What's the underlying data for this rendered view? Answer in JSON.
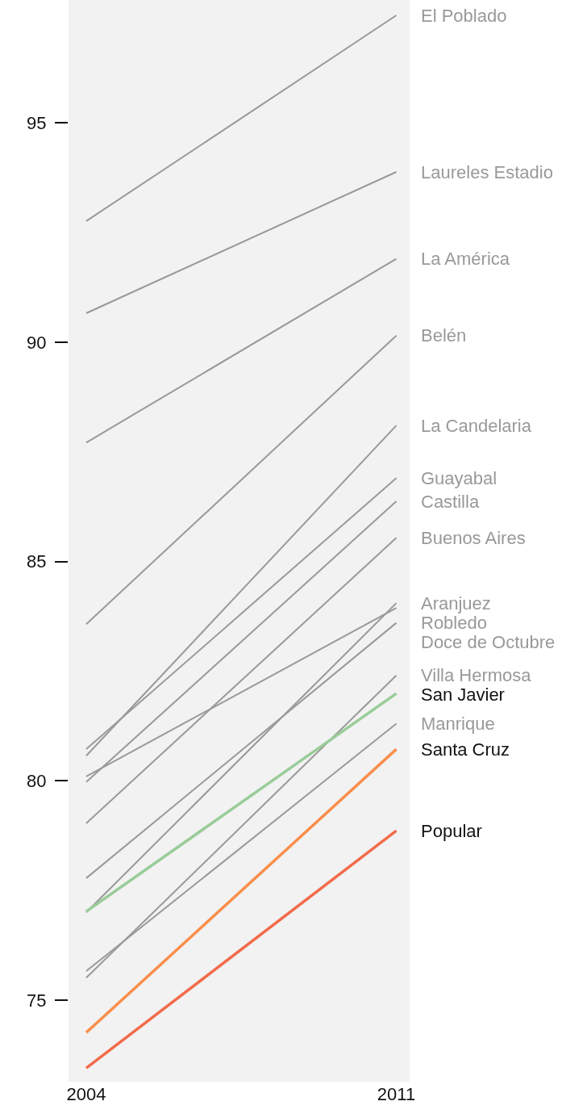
{
  "chart_data": {
    "type": "line",
    "x": [
      2004,
      2011
    ],
    "xlim": [
      2003.6,
      2011.3
    ],
    "xticks": [
      2004,
      2011
    ],
    "ylim": [
      73.14,
      97.8
    ],
    "yticks": [
      75,
      80,
      85,
      90,
      95
    ],
    "grid": false,
    "legend": false,
    "marker": "none",
    "line_style": "solid",
    "series": [
      {
        "name": "El Poblado",
        "color": "#999999",
        "values": [
          92.76,
          97.45
        ]
      },
      {
        "name": "Laureles Estadio",
        "color": "#999999",
        "values": [
          90.66,
          93.88
        ]
      },
      {
        "name": "La América",
        "color": "#999999",
        "values": [
          87.71,
          91.9
        ]
      },
      {
        "name": "Belén",
        "color": "#999999",
        "values": [
          83.57,
          90.15
        ]
      },
      {
        "name": "La Candelaria",
        "color": "#999999",
        "values": [
          80.57,
          88.1
        ]
      },
      {
        "name": "Guayabal",
        "color": "#999999",
        "values": [
          80.72,
          86.9
        ]
      },
      {
        "name": "Castilla",
        "color": "#999999",
        "values": [
          79.97,
          86.37
        ]
      },
      {
        "name": "Buenos Aires",
        "color": "#999999",
        "values": [
          79.03,
          85.54
        ]
      },
      {
        "name": "Aranjuez",
        "color": "#999999",
        "values": [
          77.0,
          84.05
        ]
      },
      {
        "name": "Robledo",
        "color": "#999999",
        "values": [
          80.1,
          83.94
        ]
      },
      {
        "name": "Doce de Octubre",
        "color": "#999999",
        "values": [
          77.78,
          83.6
        ]
      },
      {
        "name": "Villa Hermosa",
        "color": "#999999",
        "values": [
          75.51,
          82.4
        ]
      },
      {
        "name": "San Javier",
        "color": "#99cc99",
        "values": [
          77.02,
          81.99
        ]
      },
      {
        "name": "Manrique",
        "color": "#999999",
        "values": [
          75.66,
          81.3
        ]
      },
      {
        "name": "Santa Cruz",
        "color": "#f98e4b",
        "values": [
          74.26,
          80.72
        ]
      },
      {
        "name": "Popular",
        "color": "#f26b4a",
        "values": [
          73.45,
          78.86
        ]
      }
    ]
  }
}
